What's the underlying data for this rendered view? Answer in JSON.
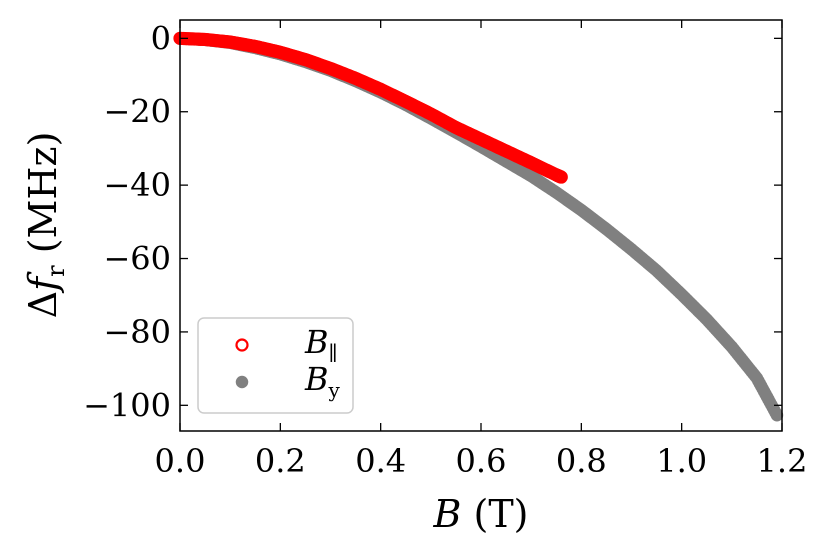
{
  "chart_data": {
    "type": "scatter",
    "xlabel": "B (T)",
    "ylabel": "Δf_r (MHz)",
    "xlim": [
      0.0,
      1.2
    ],
    "ylim": [
      -107,
      5
    ],
    "xticks": [
      0.0,
      0.2,
      0.4,
      0.6,
      0.8,
      1.0,
      1.2
    ],
    "xtick_labels": [
      "0.0",
      "0.2",
      "0.4",
      "0.6",
      "0.8",
      "1.0",
      "1.2"
    ],
    "yticks": [
      0,
      -20,
      -40,
      -60,
      -80,
      -100
    ],
    "ytick_labels": [
      "0",
      "−20",
      "−40",
      "−60",
      "−80",
      "−100"
    ],
    "grid": false,
    "legend_position": "lower-left",
    "series": [
      {
        "name": "B_∥",
        "color": "#ff0000",
        "marker": "open-circle",
        "x": [
          0.0,
          0.05,
          0.1,
          0.15,
          0.2,
          0.25,
          0.3,
          0.35,
          0.4,
          0.45,
          0.5,
          0.55,
          0.6,
          0.65,
          0.7,
          0.75,
          0.76
        ],
        "y": [
          0.0,
          -0.3,
          -1.0,
          -2.2,
          -3.8,
          -5.8,
          -8.2,
          -10.9,
          -13.9,
          -17.2,
          -20.6,
          -24.3,
          -27.5,
          -30.7,
          -33.9,
          -37.2,
          -37.8
        ]
      },
      {
        "name": "B_y",
        "color": "#808080",
        "marker": "filled-circle",
        "x": [
          0.0,
          0.05,
          0.1,
          0.15,
          0.2,
          0.25,
          0.3,
          0.35,
          0.4,
          0.45,
          0.5,
          0.55,
          0.6,
          0.65,
          0.7,
          0.75,
          0.8,
          0.85,
          0.9,
          0.95,
          1.0,
          1.05,
          1.1,
          1.15,
          1.19
        ],
        "y": [
          0.0,
          -0.4,
          -1.2,
          -2.6,
          -4.3,
          -6.4,
          -8.8,
          -11.6,
          -14.7,
          -18.1,
          -21.8,
          -25.6,
          -29.5,
          -33.5,
          -37.5,
          -42.0,
          -46.8,
          -52.0,
          -57.5,
          -63.3,
          -69.8,
          -76.6,
          -84.1,
          -92.6,
          -102.7
        ]
      }
    ]
  }
}
